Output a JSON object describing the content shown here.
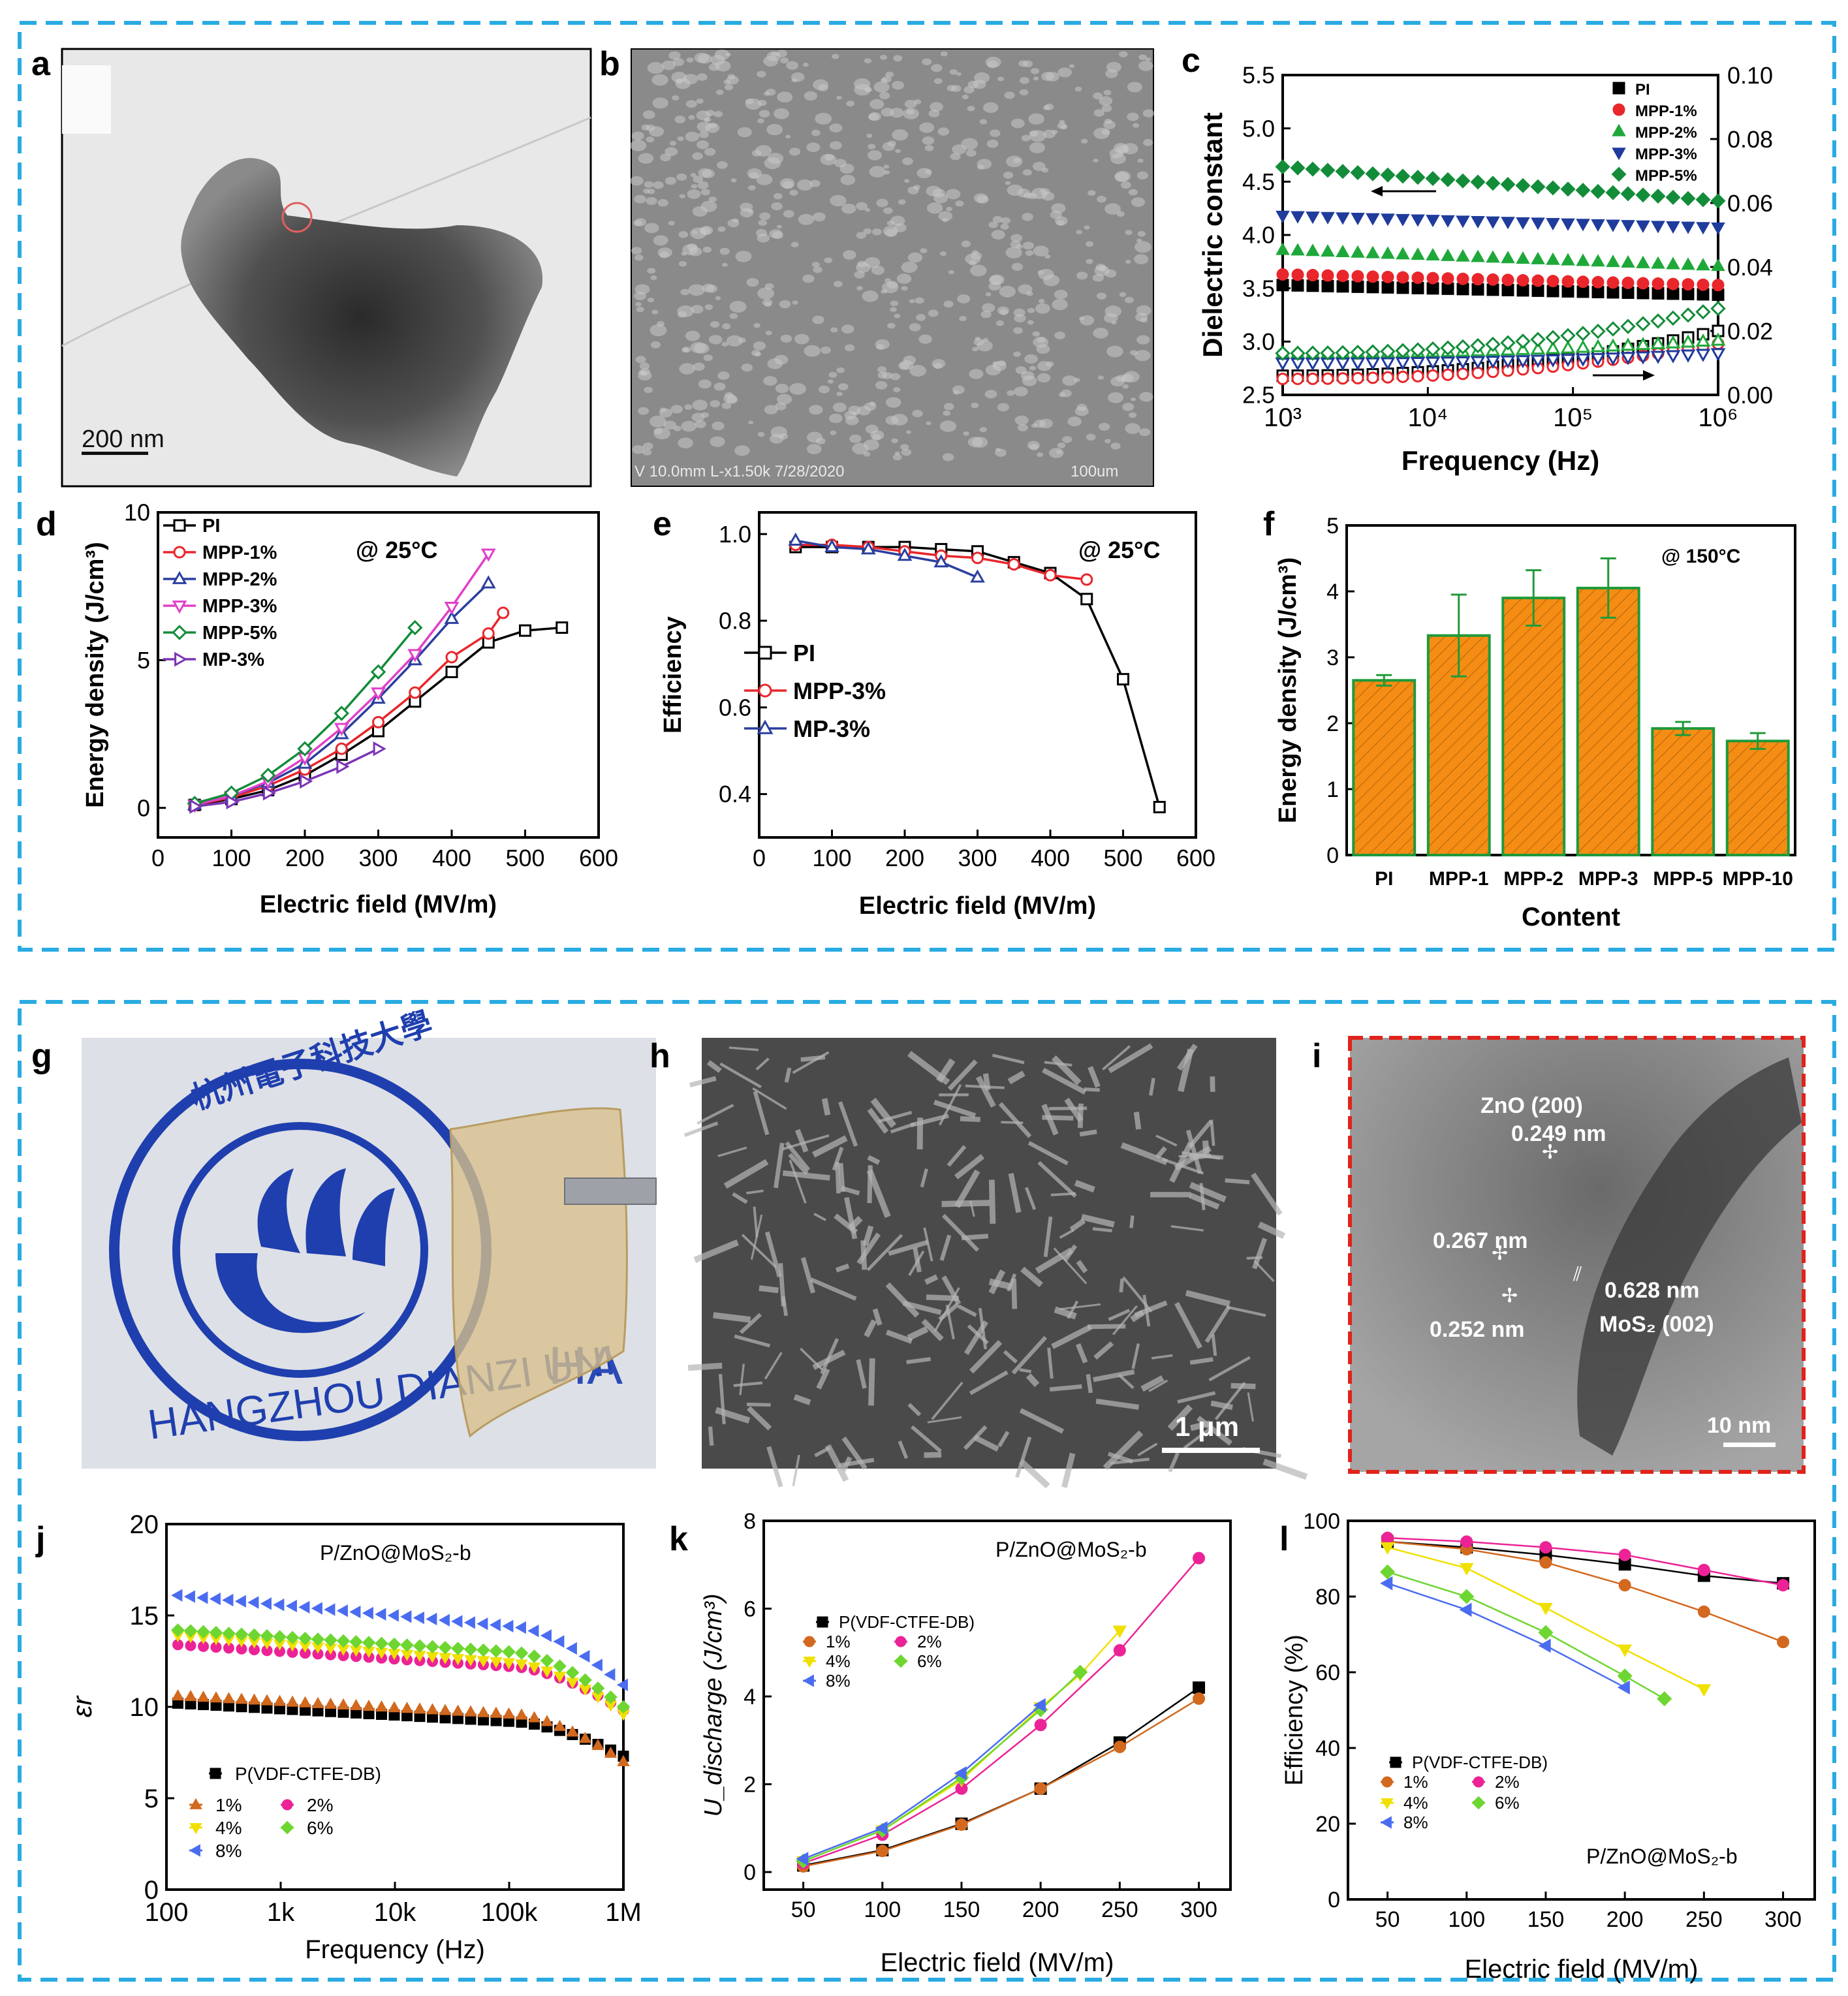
{
  "colors": {
    "frame": "#29abe2",
    "c_pi": "#000000",
    "c_1": "#e8262b",
    "c_2": "#1fa83a",
    "c_3": "#1f3b9c",
    "c_5": "#138c3a",
    "d_pi": "#000000",
    "d_1": "#e8262b",
    "d_2": "#2b3f9f",
    "d_3": "#e040c8",
    "d_5": "#138c3a",
    "d_mp": "#7b35b5",
    "bar_fill": "#f58d14",
    "bar_edge": "#1f9a3a",
    "j_pvdf": "#000000",
    "j_1": "#d2691e",
    "j_2": "#ec2396",
    "j_4": "#f0e000",
    "j_6": "#6dd630",
    "j_8": "#4a6cf0",
    "red_dash": "#e0231b"
  },
  "images": {
    "a": {
      "label": "a",
      "scalebar": "200 nm"
    },
    "b": {
      "label": "b",
      "footer_left": "V 10.0mm L-x1.50k 7/28/2020",
      "footer_right": "100um"
    },
    "g": {
      "label": "g",
      "logo_chinese": "杭州電子科技大學",
      "logo_english": "HANGZHOU DIANZI UNI",
      "side_text": "HA"
    },
    "h": {
      "label": "h",
      "scalebar": "1 μm"
    },
    "i": {
      "label": "i",
      "scalebar": "10 nm",
      "annotations": {
        "zno200": "ZnO (200)",
        "d249": "0.249 nm",
        "d267": "0.267 nm",
        "d628": "0.628 nm",
        "mos2": "MoS₂ (002)",
        "d252": "0.252 nm"
      }
    }
  },
  "chart_data": [
    {
      "id": "c",
      "label": "c",
      "type": "scatter",
      "xlabel": "Frequency (Hz)",
      "ylabel": "Dielectric constant",
      "xscale": "log",
      "xlim": [
        1000,
        1000000
      ],
      "ylim": [
        2.5,
        5.5
      ],
      "y2lim": [
        0.0,
        0.1
      ],
      "xticks": [
        "10³",
        "10⁴",
        "10⁵",
        "10⁶"
      ],
      "yticks": [
        "2.5",
        "3.0",
        "3.5",
        "4.0",
        "4.5",
        "5.0",
        "5.5"
      ],
      "y2ticks": [
        "0.00",
        "0.02",
        "0.04",
        "0.06",
        "0.08",
        "0.10"
      ],
      "legend": [
        "PI",
        "MPP-1%",
        "MPP-2%",
        "MPP-3%",
        "MPP-5%"
      ],
      "dielectric_series": [
        {
          "name": "PI",
          "start": 3.53,
          "end": 3.44
        },
        {
          "name": "MPP-1%",
          "start": 3.63,
          "end": 3.53
        },
        {
          "name": "MPP-2%",
          "start": 3.86,
          "end": 3.71
        },
        {
          "name": "MPP-3%",
          "start": 4.18,
          "end": 4.07
        },
        {
          "name": "MPP-5%",
          "start": 4.64,
          "end": 4.32
        }
      ],
      "loss_series": [
        {
          "name": "PI",
          "start": 0.006,
          "end": 0.02
        },
        {
          "name": "MPP-1%",
          "start": 0.005,
          "end": 0.016
        },
        {
          "name": "MPP-2%",
          "start": 0.013,
          "end": 0.017
        },
        {
          "name": "MPP-3%",
          "start": 0.01,
          "end": 0.013
        },
        {
          "name": "MPP-5%",
          "start": 0.013,
          "end": 0.027
        }
      ]
    },
    {
      "id": "d",
      "label": "d",
      "type": "line",
      "xlabel": "Electric field (MV/m)",
      "ylabel": "Energy density (J/cm³)",
      "xlim": [
        0,
        600
      ],
      "ylim": [
        -1,
        10
      ],
      "xticks": [
        "0",
        "100",
        "200",
        "300",
        "400",
        "500",
        "600"
      ],
      "yticks": [
        "0",
        "5",
        "10"
      ],
      "annotation": "@ 25°C",
      "series": [
        {
          "name": "PI",
          "x": [
            50,
            100,
            150,
            200,
            250,
            300,
            350,
            400,
            450,
            500,
            550
          ],
          "y": [
            0.1,
            0.3,
            0.6,
            1.1,
            1.8,
            2.6,
            3.6,
            4.6,
            5.6,
            6.0,
            6.1
          ]
        },
        {
          "name": "MPP-1%",
          "x": [
            50,
            100,
            150,
            200,
            250,
            300,
            350,
            400,
            450,
            470
          ],
          "y": [
            0.1,
            0.35,
            0.75,
            1.3,
            2.0,
            2.9,
            3.9,
            5.1,
            5.9,
            6.6
          ]
        },
        {
          "name": "MPP-2%",
          "x": [
            50,
            100,
            150,
            200,
            250,
            300,
            350,
            400,
            450
          ],
          "y": [
            0.1,
            0.4,
            0.85,
            1.5,
            2.5,
            3.7,
            5.0,
            6.4,
            7.6
          ]
        },
        {
          "name": "MPP-3%",
          "x": [
            50,
            100,
            150,
            200,
            250,
            300,
            350,
            400,
            450
          ],
          "y": [
            0.1,
            0.4,
            0.9,
            1.7,
            2.7,
            3.9,
            5.2,
            6.8,
            8.6
          ]
        },
        {
          "name": "MPP-5%",
          "x": [
            50,
            100,
            150,
            200,
            250,
            300,
            350
          ],
          "y": [
            0.15,
            0.5,
            1.1,
            2.0,
            3.2,
            4.6,
            6.1
          ]
        },
        {
          "name": "MP-3%",
          "x": [
            50,
            100,
            150,
            200,
            250,
            300
          ],
          "y": [
            0.05,
            0.2,
            0.5,
            0.9,
            1.4,
            2.0
          ]
        }
      ]
    },
    {
      "id": "e",
      "label": "e",
      "type": "line",
      "xlabel": "Electric field (MV/m)",
      "ylabel": "Efficiency",
      "xlim": [
        0,
        600
      ],
      "ylim": [
        0.3,
        1.05
      ],
      "xticks": [
        "0",
        "100",
        "200",
        "300",
        "400",
        "500",
        "600"
      ],
      "yticks": [
        "0.4",
        "0.6",
        "0.8",
        "1.0"
      ],
      "annotation": "@ 25°C",
      "series": [
        {
          "name": "PI",
          "x": [
            50,
            100,
            150,
            200,
            250,
            300,
            350,
            400,
            450,
            500,
            550
          ],
          "y": [
            0.97,
            0.97,
            0.97,
            0.97,
            0.965,
            0.96,
            0.935,
            0.91,
            0.85,
            0.665,
            0.37
          ]
        },
        {
          "name": "MPP-3%",
          "x": [
            50,
            100,
            150,
            200,
            250,
            300,
            350,
            400,
            450
          ],
          "y": [
            0.975,
            0.975,
            0.97,
            0.96,
            0.95,
            0.945,
            0.93,
            0.905,
            0.895
          ]
        },
        {
          "name": "MP-3%",
          "x": [
            50,
            100,
            150,
            200,
            250,
            300
          ],
          "y": [
            0.985,
            0.97,
            0.965,
            0.95,
            0.935,
            0.9
          ]
        }
      ]
    },
    {
      "id": "f",
      "label": "f",
      "type": "bar",
      "xlabel": "Content",
      "ylabel": "Energy density (J/cm³)",
      "ylim": [
        0,
        5
      ],
      "yticks": [
        "0",
        "1",
        "2",
        "3",
        "4",
        "5"
      ],
      "annotation": "@ 150°C",
      "categories": [
        "PI",
        "MPP-1",
        "MPP-2",
        "MPP-3",
        "MPP-5",
        "MPP-10"
      ],
      "values": [
        2.65,
        3.33,
        3.9,
        4.05,
        1.92,
        1.73
      ],
      "errors": [
        0.08,
        0.62,
        0.42,
        0.45,
        0.1,
        0.12
      ]
    },
    {
      "id": "j",
      "label": "j",
      "type": "scatter",
      "xlabel": "Frequency (Hz)",
      "ylabel": "εr",
      "title": "P/ZnO@MoS₂-b",
      "xscale": "log",
      "xlim": [
        100,
        1000000
      ],
      "ylim": [
        0,
        20
      ],
      "xticks": [
        "100",
        "1k",
        "10k",
        "100k",
        "1M"
      ],
      "yticks": [
        "0",
        "5",
        "10",
        "15",
        "20"
      ],
      "series": [
        {
          "name": "P(VDF-CTFE-DB)",
          "start": 10.2,
          "mid": 9.2,
          "end": 7.3
        },
        {
          "name": "1%",
          "start": 10.6,
          "mid": 9.6,
          "end": 7.0
        },
        {
          "name": "2%",
          "start": 13.4,
          "mid": 12.2,
          "end": 9.8
        },
        {
          "name": "4%",
          "start": 13.9,
          "mid": 12.4,
          "end": 9.6
        },
        {
          "name": "6%",
          "start": 14.2,
          "mid": 13.0,
          "end": 10.0
        },
        {
          "name": "8%",
          "start": 16.1,
          "mid": 14.4,
          "end": 11.2
        }
      ]
    },
    {
      "id": "k",
      "label": "k",
      "type": "line",
      "xlabel": "Electric field (MV/m)",
      "ylabel": "U_discharge (J/cm³)",
      "title": "P/ZnO@MoS₂-b",
      "xlim": [
        25,
        320
      ],
      "ylim": [
        -0.4,
        8
      ],
      "xticks": [
        "50",
        "100",
        "150",
        "200",
        "250",
        "300"
      ],
      "yticks": [
        "0",
        "2",
        "4",
        "6",
        "8"
      ],
      "series": [
        {
          "name": "P(VDF-CTFE-DB)",
          "x": [
            50,
            100,
            150,
            200,
            250,
            300
          ],
          "y": [
            0.15,
            0.5,
            1.1,
            1.9,
            2.95,
            4.2
          ]
        },
        {
          "name": "1%",
          "x": [
            50,
            100,
            150,
            200,
            250,
            300
          ],
          "y": [
            0.13,
            0.48,
            1.08,
            1.9,
            2.85,
            3.95
          ]
        },
        {
          "name": "2%",
          "x": [
            50,
            100,
            150,
            200,
            250,
            300
          ],
          "y": [
            0.2,
            0.85,
            1.9,
            3.35,
            5.05,
            7.15
          ]
        },
        {
          "name": "4%",
          "x": [
            50,
            100,
            150,
            200,
            225,
            250
          ],
          "y": [
            0.25,
            0.95,
            2.1,
            3.75,
            4.5,
            5.5
          ]
        },
        {
          "name": "6%",
          "x": [
            50,
            100,
            150,
            200,
            225
          ],
          "y": [
            0.25,
            0.95,
            2.15,
            3.7,
            4.55
          ]
        },
        {
          "name": "8%",
          "x": [
            50,
            100,
            150,
            200
          ],
          "y": [
            0.3,
            1.0,
            2.25,
            3.8
          ]
        }
      ]
    },
    {
      "id": "l",
      "label": "l",
      "type": "line",
      "xlabel": "Electric field (MV/m)",
      "ylabel": "Efficiency (%)",
      "title": "P/ZnO@MoS₂-b",
      "xlim": [
        25,
        320
      ],
      "ylim": [
        0,
        100
      ],
      "xticks": [
        "50",
        "100",
        "150",
        "200",
        "250",
        "300"
      ],
      "yticks": [
        "0",
        "20",
        "40",
        "60",
        "80",
        "100"
      ],
      "series": [
        {
          "name": "P(VDF-CTFE-DB)",
          "x": [
            50,
            100,
            150,
            200,
            250,
            300
          ],
          "y": [
            94.5,
            93,
            91,
            88.5,
            85.5,
            83.5
          ]
        },
        {
          "name": "1%",
          "x": [
            50,
            100,
            150,
            200,
            250,
            300
          ],
          "y": [
            94.5,
            92.5,
            89,
            83,
            76,
            68
          ]
        },
        {
          "name": "2%",
          "x": [
            50,
            100,
            150,
            200,
            250,
            300
          ],
          "y": [
            95.5,
            94.5,
            93,
            91,
            87,
            83
          ]
        },
        {
          "name": "4%",
          "x": [
            50,
            100,
            150,
            200,
            250
          ],
          "y": [
            93,
            87.5,
            77,
            66,
            55.5
          ]
        },
        {
          "name": "6%",
          "x": [
            50,
            100,
            150,
            200,
            225
          ],
          "y": [
            86.5,
            80,
            70.5,
            59,
            53
          ]
        },
        {
          "name": "8%",
          "x": [
            50,
            100,
            150,
            200
          ],
          "y": [
            83.5,
            76.5,
            67,
            56
          ]
        }
      ]
    }
  ]
}
